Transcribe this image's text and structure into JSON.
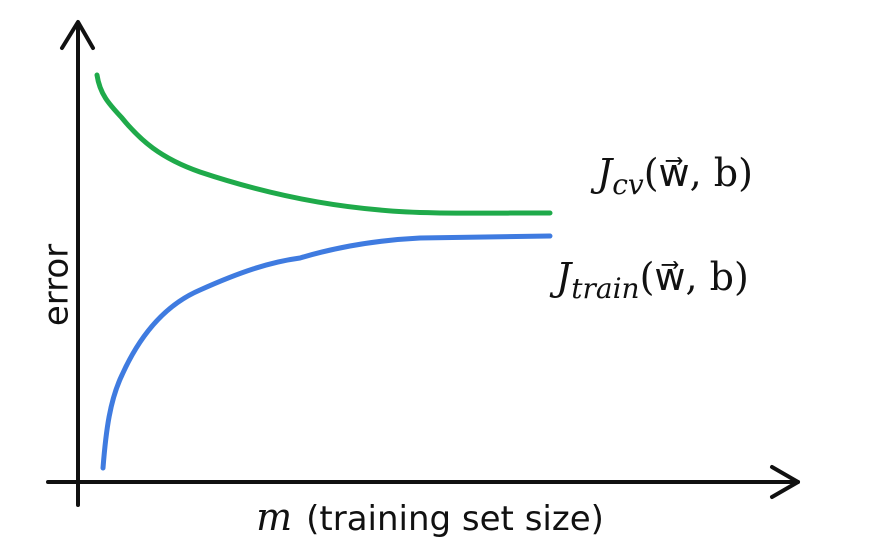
{
  "axes": {
    "y_label": "error",
    "x_label": {
      "symbol": "m",
      "text": "(training set size)"
    }
  },
  "curves": [
    {
      "symbol": "J",
      "subscript": "cv",
      "args": "(w⃗, b)"
    },
    {
      "symbol": "J",
      "subscript": "train",
      "args": "(w⃗, b)"
    }
  ]
}
